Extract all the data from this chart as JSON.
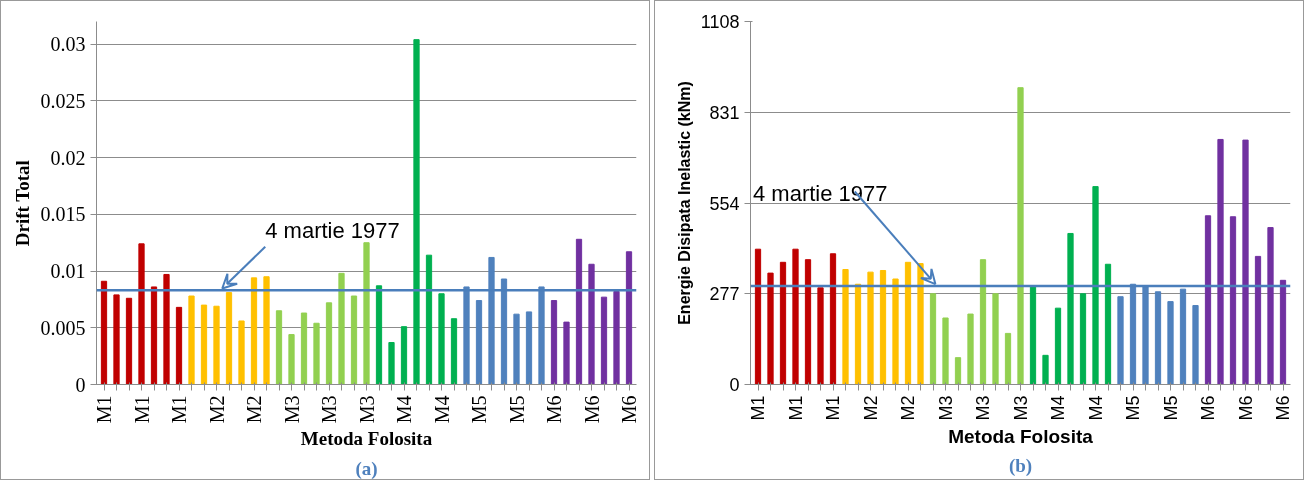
{
  "chart_data": [
    {
      "type": "bar",
      "xlabel": "Metoda Folosita",
      "ylabel": "Drift Total",
      "categories": [
        "M1",
        null,
        null,
        "M1",
        null,
        null,
        "M1",
        null,
        null,
        "M2",
        null,
        null,
        "M2",
        null,
        null,
        "M3",
        null,
        null,
        "M3",
        null,
        null,
        "M3",
        null,
        null,
        "M4",
        null,
        null,
        "M4",
        null,
        null,
        "M5",
        null,
        null,
        "M5",
        null,
        null,
        "M6",
        null,
        null,
        "M6",
        null,
        null,
        "M6"
      ],
      "values": [
        0.0091,
        0.0079,
        0.0076,
        0.0124,
        0.0086,
        0.0097,
        0.0068,
        0.0078,
        0.007,
        0.0069,
        0.0081,
        0.0056,
        0.0094,
        0.0095,
        0.0065,
        0.0044,
        0.0063,
        0.0054,
        0.0072,
        0.0098,
        0.0078,
        0.0125,
        0.0087,
        0.0037,
        0.0051,
        0.0304,
        0.0114,
        0.008,
        0.0058,
        0.0086,
        0.0074,
        0.0112,
        0.0093,
        0.0062,
        0.0064,
        0.0086,
        0.0074,
        0.0055,
        0.0128,
        0.0106,
        0.0077,
        0.0082,
        0.0117
      ],
      "colors": [
        "#c00000",
        "#c00000",
        "#c00000",
        "#c00000",
        "#c00000",
        "#c00000",
        "#c00000",
        "#ffc000",
        "#ffc000",
        "#ffc000",
        "#ffc000",
        "#ffc000",
        "#ffc000",
        "#ffc000",
        "#92d050",
        "#92d050",
        "#92d050",
        "#92d050",
        "#92d050",
        "#92d050",
        "#92d050",
        "#92d050",
        "#00b050",
        "#00b050",
        "#00b050",
        "#00b050",
        "#00b050",
        "#00b050",
        "#00b050",
        "#4f81bd",
        "#4f81bd",
        "#4f81bd",
        "#4f81bd",
        "#4f81bd",
        "#4f81bd",
        "#4f81bd",
        "#7030a0",
        "#7030a0",
        "#7030a0",
        "#7030a0",
        "#7030a0",
        "#7030a0",
        "#7030a0"
      ],
      "ylim": [
        0,
        0.032
      ],
      "yticks": [
        0,
        0.005,
        0.01,
        0.015,
        0.02,
        0.025,
        0.03
      ],
      "grid": "y",
      "ref_lines": [
        {
          "axis": "y",
          "value": 0.0083,
          "label": "4 martie 1977",
          "color": "#4a7ebb"
        }
      ],
      "annotations": [
        "(a)"
      ]
    },
    {
      "type": "bar",
      "xlabel": "Metoda Folosita",
      "ylabel": "Energie Disipata Inelastic (kNm)",
      "categories": [
        "M1",
        null,
        null,
        "M1",
        null,
        null,
        "M1",
        null,
        null,
        "M2",
        null,
        null,
        "M2",
        null,
        null,
        "M3",
        null,
        null,
        "M3",
        null,
        null,
        "M3",
        null,
        null,
        "M4",
        null,
        null,
        "M4",
        null,
        null,
        "M5",
        null,
        null,
        "M5",
        null,
        null,
        "M6",
        null,
        null,
        "M6",
        null,
        null,
        "M6"
      ],
      "values": [
        413,
        340,
        373,
        413,
        381,
        295,
        399,
        351,
        306,
        343,
        348,
        322,
        373,
        369,
        277,
        203,
        82,
        215,
        381,
        277,
        156,
        906,
        300,
        89,
        233,
        461,
        277,
        604,
        367,
        268,
        306,
        298,
        283,
        253,
        291,
        241,
        515,
        748,
        512,
        746,
        391,
        479,
        318
      ],
      "colors": [
        "#c00000",
        "#c00000",
        "#c00000",
        "#c00000",
        "#c00000",
        "#c00000",
        "#c00000",
        "#ffc000",
        "#ffc000",
        "#ffc000",
        "#ffc000",
        "#ffc000",
        "#ffc000",
        "#ffc000",
        "#92d050",
        "#92d050",
        "#92d050",
        "#92d050",
        "#92d050",
        "#92d050",
        "#92d050",
        "#92d050",
        "#00b050",
        "#00b050",
        "#00b050",
        "#00b050",
        "#00b050",
        "#00b050",
        "#00b050",
        "#4f81bd",
        "#4f81bd",
        "#4f81bd",
        "#4f81bd",
        "#4f81bd",
        "#4f81bd",
        "#4f81bd",
        "#7030a0",
        "#7030a0",
        "#7030a0",
        "#7030a0",
        "#7030a0",
        "#7030a0",
        "#7030a0"
      ],
      "ylim": [
        0,
        1108
      ],
      "yticks": [
        0,
        277,
        554,
        831,
        1108
      ],
      "grid": "y",
      "ref_lines": [
        {
          "axis": "y",
          "value": 301,
          "label": "4 martie 1977",
          "color": "#4a7ebb"
        }
      ],
      "annotations": [
        "(b)"
      ]
    }
  ]
}
